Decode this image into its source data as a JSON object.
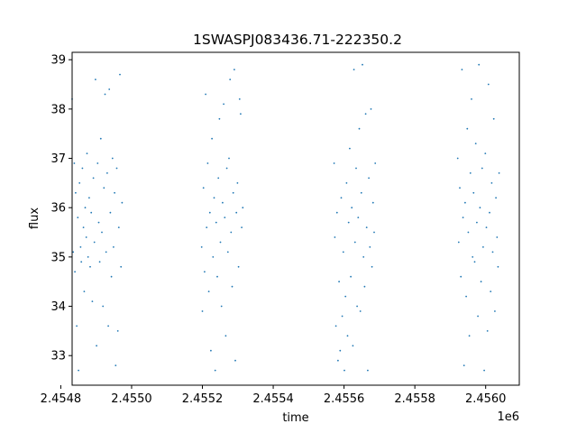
{
  "chart_data": {
    "type": "scatter",
    "title": "1SWASPJ083436.71-222350.2",
    "xlabel": "time",
    "ylabel": "flux",
    "x_offset_label": "1e6",
    "xlim": [
      2454832,
      2456095
    ],
    "ylim": [
      32.4,
      39.15
    ],
    "x_ticks": [
      {
        "value": 2454800,
        "label": "2.4548"
      },
      {
        "value": 2455000,
        "label": "2.4550"
      },
      {
        "value": 2455200,
        "label": "2.4552"
      },
      {
        "value": 2455400,
        "label": "2.4554"
      },
      {
        "value": 2455600,
        "label": "2.4556"
      },
      {
        "value": 2455800,
        "label": "2.4558"
      },
      {
        "value": 2456000,
        "label": "2.4560"
      }
    ],
    "y_ticks": [
      {
        "value": 33,
        "label": "33"
      },
      {
        "value": 34,
        "label": "34"
      },
      {
        "value": 35,
        "label": "35"
      },
      {
        "value": 36,
        "label": "36"
      },
      {
        "value": 37,
        "label": "37"
      },
      {
        "value": 38,
        "label": "38"
      },
      {
        "value": 39,
        "label": "39"
      }
    ],
    "grid": false,
    "marker_color": "#1f77b4",
    "series": [
      {
        "points": [
          [
            2454832,
            38.2
          ],
          [
            2454835,
            35.1
          ],
          [
            2454838,
            36.9
          ],
          [
            2454840,
            34.7
          ],
          [
            2454842,
            36.3
          ],
          [
            2454845,
            33.6
          ],
          [
            2454848,
            35.8
          ],
          [
            2454850,
            32.7
          ],
          [
            2454853,
            36.5
          ],
          [
            2454856,
            35.2
          ],
          [
            2454858,
            34.9
          ],
          [
            2454861,
            36.8
          ],
          [
            2454864,
            35.6
          ],
          [
            2454866,
            34.3
          ],
          [
            2454869,
            36.0
          ],
          [
            2454872,
            35.4
          ],
          [
            2454874,
            37.1
          ],
          [
            2454877,
            35.0
          ],
          [
            2454880,
            36.2
          ],
          [
            2454883,
            34.8
          ],
          [
            2454886,
            35.9
          ],
          [
            2454889,
            34.1
          ],
          [
            2454892,
            36.6
          ],
          [
            2454895,
            35.3
          ],
          [
            2454898,
            38.6
          ],
          [
            2454901,
            33.2
          ],
          [
            2454904,
            36.9
          ],
          [
            2454907,
            35.7
          ],
          [
            2454910,
            34.9
          ],
          [
            2454913,
            37.4
          ],
          [
            2454916,
            35.5
          ],
          [
            2454919,
            34.0
          ],
          [
            2454922,
            36.4
          ],
          [
            2454925,
            38.3
          ],
          [
            2454928,
            35.1
          ],
          [
            2454931,
            36.7
          ],
          [
            2454934,
            33.6
          ],
          [
            2454937,
            38.4
          ],
          [
            2454940,
            35.9
          ],
          [
            2454943,
            34.6
          ],
          [
            2454946,
            37.0
          ],
          [
            2454949,
            35.2
          ],
          [
            2454952,
            36.3
          ],
          [
            2454955,
            32.8
          ],
          [
            2454958,
            36.8
          ],
          [
            2454961,
            33.5
          ],
          [
            2454964,
            35.6
          ],
          [
            2454967,
            38.7
          ],
          [
            2454970,
            34.8
          ],
          [
            2454973,
            36.1
          ],
          [
            2455198,
            35.2
          ],
          [
            2455200,
            33.9
          ],
          [
            2455203,
            36.4
          ],
          [
            2455206,
            34.7
          ],
          [
            2455209,
            38.3
          ],
          [
            2455212,
            35.6
          ],
          [
            2455215,
            36.9
          ],
          [
            2455218,
            34.3
          ],
          [
            2455221,
            35.9
          ],
          [
            2455224,
            33.1
          ],
          [
            2455227,
            37.4
          ],
          [
            2455230,
            35.0
          ],
          [
            2455233,
            36.2
          ],
          [
            2455236,
            32.7
          ],
          [
            2455239,
            35.7
          ],
          [
            2455242,
            34.6
          ],
          [
            2455245,
            36.6
          ],
          [
            2455248,
            37.8
          ],
          [
            2455251,
            35.3
          ],
          [
            2455254,
            34.0
          ],
          [
            2455257,
            36.1
          ],
          [
            2455260,
            38.1
          ],
          [
            2455263,
            35.8
          ],
          [
            2455266,
            33.4
          ],
          [
            2455269,
            36.8
          ],
          [
            2455272,
            35.1
          ],
          [
            2455275,
            37.0
          ],
          [
            2455278,
            38.6
          ],
          [
            2455281,
            35.5
          ],
          [
            2455284,
            34.4
          ],
          [
            2455287,
            36.3
          ],
          [
            2455290,
            38.8
          ],
          [
            2455293,
            32.9
          ],
          [
            2455296,
            35.9
          ],
          [
            2455299,
            36.5
          ],
          [
            2455302,
            34.8
          ],
          [
            2455305,
            38.2
          ],
          [
            2455308,
            37.9
          ],
          [
            2455311,
            35.6
          ],
          [
            2455314,
            36.0
          ],
          [
            2455572,
            36.9
          ],
          [
            2455574,
            35.4
          ],
          [
            2455577,
            33.6
          ],
          [
            2455580,
            35.9
          ],
          [
            2455583,
            32.9
          ],
          [
            2455586,
            34.5
          ],
          [
            2455589,
            33.1
          ],
          [
            2455592,
            36.2
          ],
          [
            2455595,
            33.8
          ],
          [
            2455598,
            35.1
          ],
          [
            2455601,
            32.7
          ],
          [
            2455604,
            34.2
          ],
          [
            2455607,
            36.5
          ],
          [
            2455610,
            33.4
          ],
          [
            2455613,
            35.7
          ],
          [
            2455616,
            37.2
          ],
          [
            2455619,
            34.6
          ],
          [
            2455622,
            36.0
          ],
          [
            2455625,
            33.2
          ],
          [
            2455628,
            38.8
          ],
          [
            2455631,
            35.3
          ],
          [
            2455634,
            36.8
          ],
          [
            2455637,
            34.0
          ],
          [
            2455640,
            35.8
          ],
          [
            2455643,
            37.6
          ],
          [
            2455646,
            33.9
          ],
          [
            2455649,
            36.3
          ],
          [
            2455652,
            38.9
          ],
          [
            2455655,
            35.0
          ],
          [
            2455658,
            34.4
          ],
          [
            2455661,
            37.9
          ],
          [
            2455664,
            35.6
          ],
          [
            2455667,
            32.7
          ],
          [
            2455670,
            36.6
          ],
          [
            2455673,
            35.2
          ],
          [
            2455676,
            38.0
          ],
          [
            2455679,
            34.8
          ],
          [
            2455682,
            36.1
          ],
          [
            2455685,
            35.5
          ],
          [
            2455688,
            36.9
          ],
          [
            2455921,
            37.0
          ],
          [
            2455924,
            35.3
          ],
          [
            2455927,
            36.4
          ],
          [
            2455930,
            34.6
          ],
          [
            2455933,
            38.8
          ],
          [
            2455936,
            35.8
          ],
          [
            2455939,
            32.8
          ],
          [
            2455942,
            36.1
          ],
          [
            2455945,
            34.2
          ],
          [
            2455948,
            37.6
          ],
          [
            2455951,
            35.5
          ],
          [
            2455954,
            33.4
          ],
          [
            2455957,
            36.7
          ],
          [
            2455960,
            38.2
          ],
          [
            2455963,
            35.0
          ],
          [
            2455966,
            36.3
          ],
          [
            2455969,
            34.9
          ],
          [
            2455972,
            37.3
          ],
          [
            2455975,
            35.7
          ],
          [
            2455978,
            33.8
          ],
          [
            2455981,
            38.9
          ],
          [
            2455984,
            36.0
          ],
          [
            2455987,
            34.5
          ],
          [
            2455990,
            36.8
          ],
          [
            2455993,
            35.2
          ],
          [
            2455996,
            32.7
          ],
          [
            2455999,
            37.1
          ],
          [
            2456002,
            35.6
          ],
          [
            2456005,
            33.5
          ],
          [
            2456008,
            38.5
          ],
          [
            2456011,
            35.9
          ],
          [
            2456014,
            34.3
          ],
          [
            2456017,
            36.5
          ],
          [
            2456020,
            35.1
          ],
          [
            2456023,
            37.8
          ],
          [
            2456026,
            33.9
          ],
          [
            2456029,
            36.2
          ],
          [
            2456032,
            35.4
          ],
          [
            2456035,
            34.8
          ],
          [
            2456038,
            36.7
          ]
        ]
      }
    ]
  }
}
